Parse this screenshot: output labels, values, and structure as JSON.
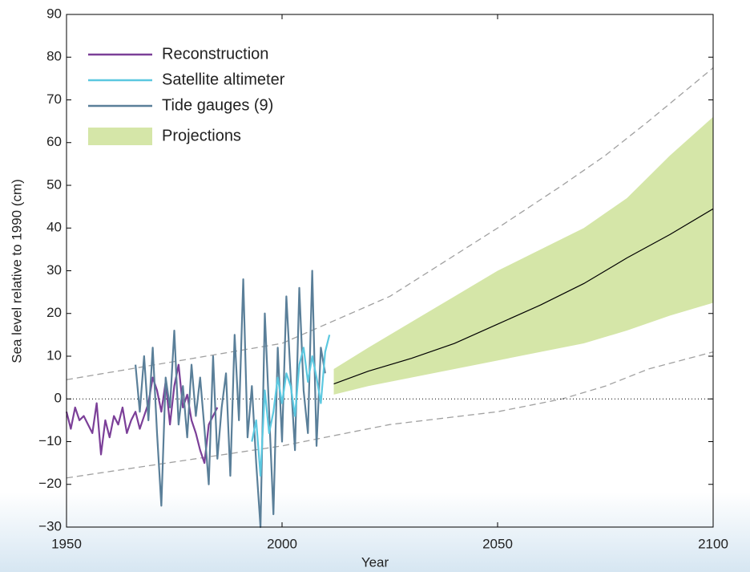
{
  "chart_data": {
    "type": "line",
    "xlabel": "Year",
    "ylabel": "Sea level relative to 1990 (cm)",
    "xlim": [
      1950,
      2100
    ],
    "ylim": [
      -30,
      90
    ],
    "xticks": [
      1950,
      2000,
      2050,
      2100
    ],
    "yticks": [
      {
        "value": -30,
        "label": "−30"
      },
      {
        "value": -20,
        "label": "−20"
      },
      {
        "value": -10,
        "label": "−10"
      },
      0,
      10,
      20,
      30,
      40,
      50,
      60,
      70,
      80,
      90
    ],
    "legend": "upper left",
    "reference_line": 0,
    "series": [
      {
        "name": "Reconstruction",
        "color": "#7b3f98",
        "x": [
          1950,
          1951,
          1952,
          1953,
          1954,
          1955,
          1956,
          1957,
          1958,
          1959,
          1960,
          1961,
          1962,
          1963,
          1964,
          1965,
          1966,
          1967,
          1968,
          1969,
          1970,
          1971,
          1972,
          1973,
          1974,
          1975,
          1976,
          1977,
          1978,
          1979,
          1980,
          1981,
          1982,
          1983,
          1984,
          1985
        ],
        "values": [
          -3,
          -7,
          -2,
          -5,
          -4,
          -6,
          -8,
          -1,
          -13,
          -5,
          -9,
          -4,
          -6,
          -2,
          -8,
          -5,
          -3,
          -7,
          -4,
          -1,
          5,
          2,
          -3,
          4,
          -6,
          3,
          8,
          -2,
          1,
          -5,
          -8,
          -12,
          -15,
          -6,
          -4,
          -2
        ]
      },
      {
        "name": "Tide gauges (9)",
        "color": "#5a7f99",
        "x": [
          1966,
          1967,
          1968,
          1969,
          1970,
          1971,
          1972,
          1973,
          1974,
          1975,
          1976,
          1977,
          1978,
          1979,
          1980,
          1981,
          1982,
          1983,
          1984,
          1985,
          1986,
          1987,
          1988,
          1989,
          1990,
          1991,
          1992,
          1993,
          1994,
          1995,
          1996,
          1997,
          1998,
          1999,
          2000,
          2001,
          2002,
          2003,
          2004,
          2005,
          2006,
          2007,
          2008,
          2009,
          2010
        ],
        "values": [
          8,
          -3,
          10,
          -5,
          12,
          -8,
          -25,
          5,
          -2,
          16,
          -6,
          3,
          -9,
          8,
          -4,
          5,
          -7,
          -20,
          10,
          -14,
          -2,
          6,
          -18,
          15,
          -5,
          28,
          -9,
          3,
          -15,
          -30,
          20,
          -3,
          -27,
          12,
          -10,
          24,
          5,
          -12,
          26,
          2,
          -8,
          30,
          -11,
          12,
          6
        ]
      },
      {
        "name": "Satellite altimeter",
        "color": "#5bc8e0",
        "x": [
          1993,
          1994,
          1995,
          1996,
          1997,
          1998,
          1999,
          2000,
          2001,
          2002,
          2003,
          2004,
          2005,
          2006,
          2007,
          2008,
          2009,
          2010,
          2011
        ],
        "values": [
          -10,
          -5,
          -18,
          2,
          -8,
          -3,
          5,
          -1,
          6,
          3,
          -4,
          8,
          12,
          4,
          10,
          5,
          -1,
          11,
          15
        ]
      }
    ],
    "projection": {
      "name": "Projections",
      "color": "#d5e6a8",
      "median_color": "#000000",
      "x": [
        2012,
        2020,
        2030,
        2040,
        2050,
        2060,
        2070,
        2080,
        2090,
        2100
      ],
      "lower": [
        1,
        3,
        5,
        7,
        9,
        11,
        13,
        16,
        19.5,
        22.5
      ],
      "upper": [
        7,
        12,
        18,
        24,
        30,
        35,
        40,
        47,
        57,
        66
      ],
      "median": [
        3.5,
        6.5,
        9.5,
        13,
        17.5,
        22,
        27,
        33,
        38.5,
        44.5
      ]
    },
    "bounds": {
      "color": "#a0a0a0",
      "x": [
        1950,
        2000,
        2025,
        2050,
        2065,
        2075,
        2085,
        2100
      ],
      "upper": [
        4.5,
        13,
        24,
        40,
        50,
        57,
        65,
        77.5
      ],
      "lower": [
        -18.5,
        -11,
        -6,
        -3,
        0,
        3,
        7,
        11
      ]
    }
  }
}
